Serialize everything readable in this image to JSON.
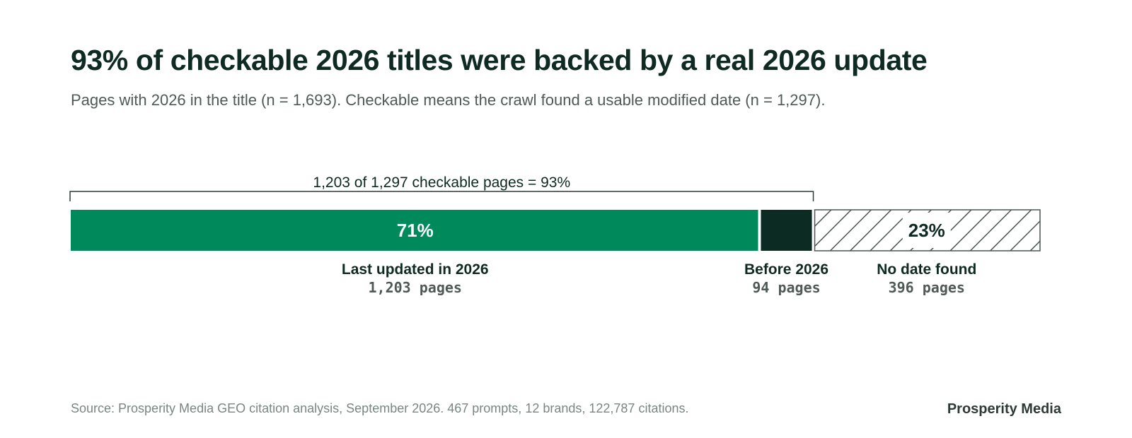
{
  "header": {
    "title": "93% of checkable 2026 titles were backed by a real 2026 update",
    "subtitle": "Pages with 2026 in the title (n = 1,693). Checkable means the crawl found a usable modified date (n = 1,297)."
  },
  "chart_data": {
    "type": "bar",
    "orientation": "horizontal-stacked",
    "total": 1693,
    "segments": [
      {
        "name": "Last updated in 2026",
        "value": 1203,
        "count_label": "1,203 pages",
        "percent_label": "71%",
        "color": "#008a5c",
        "pattern": "solid"
      },
      {
        "name": "Before 2026",
        "value": 94,
        "count_label": "94 pages",
        "percent_label": "",
        "color": "#0c2b23",
        "pattern": "solid"
      },
      {
        "name": "No date found",
        "value": 396,
        "count_label": "396 pages",
        "percent_label": "23%",
        "color": "#4a5652",
        "pattern": "hatched"
      }
    ],
    "bracket": {
      "label": "1,203 of 1,297 checkable pages = 93%",
      "covers_segments": 2
    }
  },
  "footer": {
    "source": "Source: Prosperity Media GEO citation analysis, September 2026. 467 prompts, 12 brands, 122,787 citations.",
    "brand": "Prosperity Media"
  }
}
